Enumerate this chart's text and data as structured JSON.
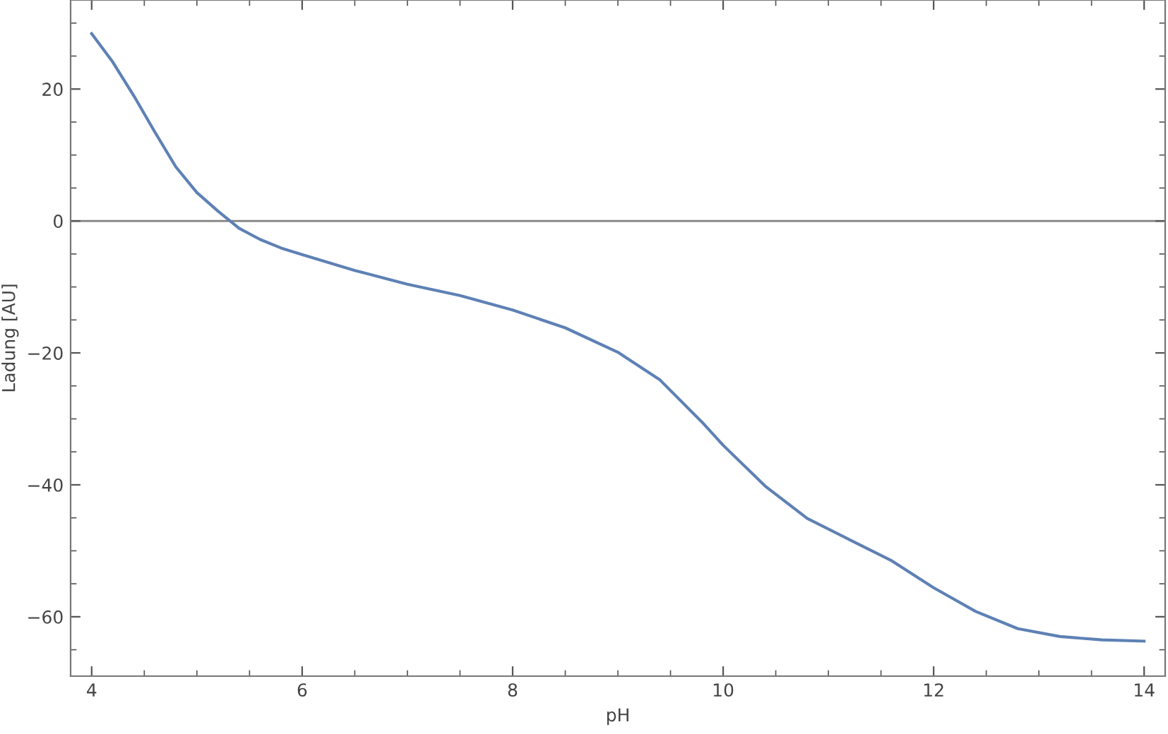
{
  "chart_data": {
    "type": "line",
    "xlabel": "pH",
    "ylabel": "Ladung [AU]",
    "x": [
      4.0,
      4.2,
      4.4,
      4.6,
      4.8,
      5.0,
      5.2,
      5.4,
      5.6,
      5.8,
      6.0,
      6.5,
      7.0,
      7.5,
      8.0,
      8.5,
      9.0,
      9.4,
      9.8,
      10.0,
      10.4,
      10.8,
      11.2,
      11.6,
      12.0,
      12.4,
      12.8,
      13.2,
      13.6,
      14.0
    ],
    "series": [
      {
        "color": "#5e81b5",
        "values": [
          28.4,
          24.1,
          19.0,
          13.5,
          8.2,
          4.3,
          1.5,
          -1.1,
          -2.8,
          -4.1,
          -5.1,
          -7.5,
          -9.6,
          -11.3,
          -13.5,
          -16.2,
          -19.9,
          -24.1,
          -30.5,
          -34.0,
          -40.2,
          -45.1,
          -48.3,
          -51.5,
          -55.6,
          -59.2,
          -61.8,
          -63.0,
          -63.5,
          -63.7
        ]
      }
    ],
    "xlim": [
      3.8,
      14.2
    ],
    "ylim": [
      -69,
      33.5
    ],
    "xticks": [
      4,
      6,
      8,
      10,
      12,
      14
    ],
    "yticks": [
      {
        "value": -60,
        "label": "−60"
      },
      {
        "value": -40,
        "label": "−40"
      },
      {
        "value": -20,
        "label": "−20"
      },
      0,
      20
    ],
    "ref_lines": [
      {
        "axis": "y",
        "value": 0,
        "color": "#808080"
      }
    ],
    "grid": false,
    "legend": false,
    "marker": "none",
    "line_style": "solid"
  }
}
